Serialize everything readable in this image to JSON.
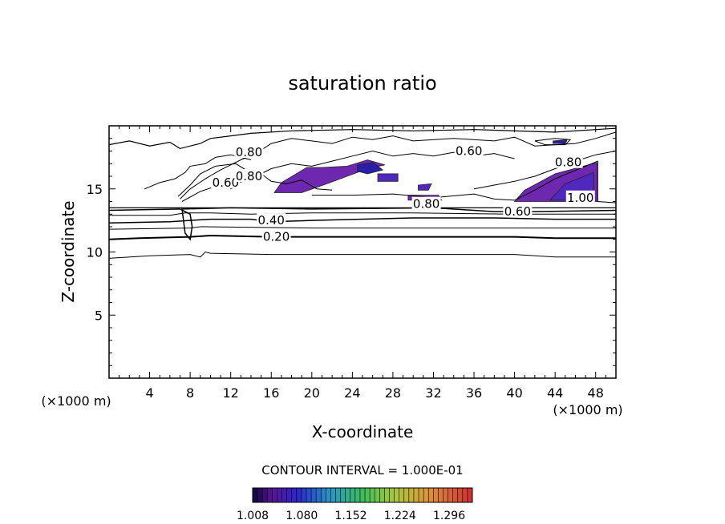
{
  "chart_data": {
    "type": "contour",
    "title": "saturation ratio",
    "xlabel": "X-coordinate",
    "ylabel": "Z-coordinate",
    "x_unit_label": "(×1000 m)",
    "z_unit_label": "(×1000 m)",
    "xlim": [
      0,
      50
    ],
    "ylim": [
      0,
      20
    ],
    "x_ticks": [
      4,
      8,
      12,
      16,
      20,
      24,
      28,
      32,
      36,
      40,
      44,
      48
    ],
    "y_ticks": [
      5,
      10,
      15
    ],
    "contour_interval_text": "CONTOUR INTERVAL = 1.000E-01",
    "contour_interval": 0.1,
    "contour_labels": [
      {
        "text": "0.20",
        "x": 16.5,
        "z": 11.2
      },
      {
        "text": "0.40",
        "x": 16.0,
        "z": 12.5
      },
      {
        "text": "0.60",
        "x": 40.3,
        "z": 13.2
      },
      {
        "text": "0.80",
        "x": 31.3,
        "z": 13.8
      },
      {
        "text": "1.00",
        "x": 46.5,
        "z": 14.3
      },
      {
        "text": "0.80",
        "x": 45.3,
        "z": 17.1
      },
      {
        "text": "0.60",
        "x": 35.5,
        "z": 18.0
      },
      {
        "text": "0.80",
        "x": 13.8,
        "z": 17.9
      },
      {
        "text": "0.60",
        "x": 11.5,
        "z": 15.5
      },
      {
        "text": "0.80",
        "x": 13.8,
        "z": 16.0
      }
    ],
    "fill_regions": [
      {
        "level": 1.008,
        "poly": [
          [
            40,
            14.0
          ],
          [
            48.2,
            14.0
          ],
          [
            48.2,
            17.1
          ],
          [
            44,
            16.2
          ],
          [
            41,
            14.9
          ]
        ]
      },
      {
        "level": 1.02,
        "poly": [
          [
            43.5,
            14.1
          ],
          [
            47.8,
            14.1
          ],
          [
            47.8,
            16.3
          ],
          [
            45,
            15.4
          ]
        ]
      },
      {
        "level": 1.008,
        "poly": [
          [
            16.3,
            14.7
          ],
          [
            19,
            14.7
          ],
          [
            21.8,
            15.5
          ],
          [
            25.5,
            16.6
          ],
          [
            27.2,
            16.9
          ],
          [
            25.5,
            17.3
          ],
          [
            23.5,
            16.8
          ],
          [
            21,
            16.7
          ],
          [
            19.5,
            16.7
          ],
          [
            17,
            15.5
          ]
        ]
      },
      {
        "level": 1.03,
        "poly": [
          [
            24.5,
            16.4
          ],
          [
            25.5,
            16.2
          ],
          [
            27,
            16.5
          ],
          [
            26,
            17.1
          ],
          [
            24.5,
            16.9
          ]
        ]
      },
      {
        "level": 1.02,
        "poly": [
          [
            26.5,
            15.6
          ],
          [
            28.5,
            15.6
          ],
          [
            28.5,
            16.2
          ],
          [
            26.5,
            16.2
          ]
        ]
      },
      {
        "level": 1.008,
        "poly": [
          [
            29.5,
            14.5
          ],
          [
            32.5,
            14.5
          ],
          [
            32.8,
            14.1
          ],
          [
            29.5,
            14.1
          ]
        ]
      },
      {
        "level": 1.02,
        "poly": [
          [
            30.5,
            15.3
          ],
          [
            31.8,
            15.4
          ],
          [
            31.5,
            14.9
          ],
          [
            30.5,
            14.9
          ]
        ]
      },
      {
        "level": 1.008,
        "poly": [
          [
            12.0,
            15.0
          ],
          [
            12.8,
            15.3
          ],
          [
            12.5,
            15.8
          ],
          [
            12.0,
            15.5
          ]
        ]
      },
      {
        "level": 1.03,
        "poly": [
          [
            43.8,
            18.8
          ],
          [
            45.2,
            18.9
          ],
          [
            45.0,
            18.6
          ],
          [
            43.8,
            18.6
          ]
        ]
      }
    ],
    "colorbar": {
      "labels": [
        "1.008",
        "1.080",
        "1.152",
        "1.224",
        "1.296"
      ],
      "min": 1.008,
      "max": 1.33
    }
  }
}
